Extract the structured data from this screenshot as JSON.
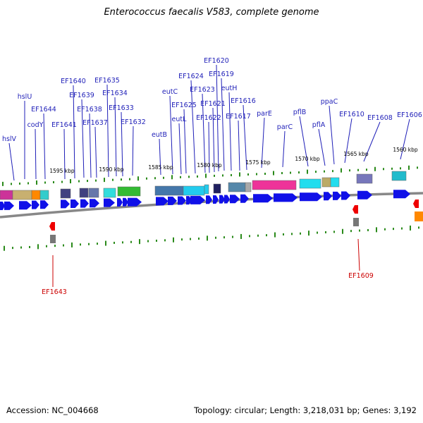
{
  "title": "Enterococcus faecalis V583, complete genome",
  "footer": {
    "accession": "Accession: NC_004668",
    "topology": "Topology: circular; Length: 3,218,031 bp; Genes: 3,192"
  },
  "colors": {
    "forward_gene": "#1010e8",
    "reverse_gene": "#ee0000",
    "label_blue": "#1f1fb8",
    "label_red": "#cc0000",
    "tick_green": "#2a8a1a",
    "backbone": "#888888"
  },
  "scale_ticks": [
    "1595 kbp",
    "1590 kbp",
    "1585 kbp",
    "1580 kbp",
    "1575 kbp",
    "1570 kbp",
    "1565 kbp",
    "1560 kbp"
  ],
  "gene_labels": [
    "hslV",
    "hslU",
    "codY",
    "EF1644",
    "EF1641",
    "EF1640",
    "EF1639",
    "EF1638",
    "EF1637",
    "EF1635",
    "EF1634",
    "EF1633",
    "EF1632",
    "eutB",
    "eutC",
    "eutL",
    "EF1625",
    "EF1624",
    "EF1623",
    "EF1622",
    "EF1621",
    "EF1620",
    "EF1619",
    "eutH",
    "EF1617",
    "EF1616",
    "parE",
    "parC",
    "pflB",
    "pflA",
    "ppaC",
    "EF1610",
    "EF1608",
    "EF1606"
  ],
  "reverse_labels": [
    "EF1643",
    "EF1609"
  ]
}
